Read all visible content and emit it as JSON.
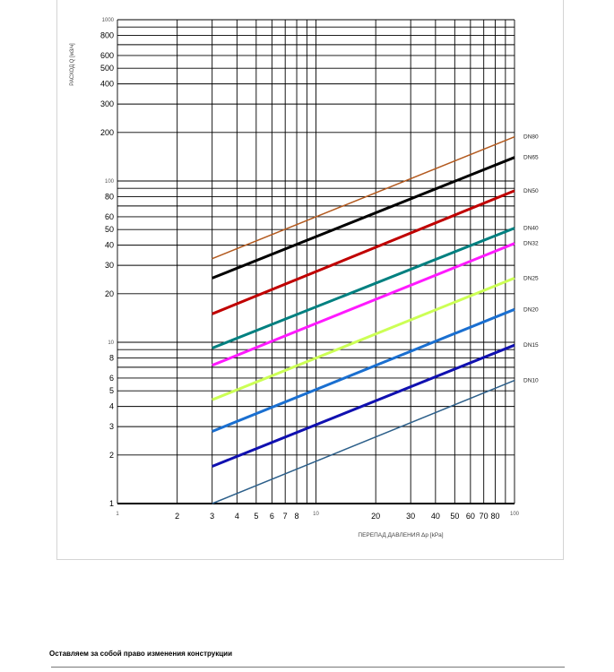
{
  "chart_data": {
    "type": "line",
    "xscale": "log",
    "yscale": "log",
    "xlim": [
      1,
      100
    ],
    "ylim": [
      1,
      1000
    ],
    "grid": true,
    "xlabel": "ПЕРЕПАД ДАВЛЕНИЯ Δp  [kPa]",
    "ylabel": "РАСХОД Q  [м3/ч]",
    "x_ticks": [
      {
        "v": 1,
        "label": "1",
        "minor": true
      },
      {
        "v": 2,
        "label": "2"
      },
      {
        "v": 3,
        "label": "3"
      },
      {
        "v": 4,
        "label": "4"
      },
      {
        "v": 5,
        "label": "5"
      },
      {
        "v": 6,
        "label": "6"
      },
      {
        "v": 7,
        "label": "7"
      },
      {
        "v": 8,
        "label": "8"
      },
      {
        "v": 10,
        "label": "10",
        "minor": true
      },
      {
        "v": 20,
        "label": "20"
      },
      {
        "v": 30,
        "label": "30"
      },
      {
        "v": 40,
        "label": "40"
      },
      {
        "v": 50,
        "label": "50"
      },
      {
        "v": 60,
        "label": "60"
      },
      {
        "v": 70,
        "label": "70"
      },
      {
        "v": 80,
        "label": "80"
      },
      {
        "v": 100,
        "label": "100",
        "minor": true
      }
    ],
    "x_gridlines": [
      1,
      2,
      3,
      4,
      5,
      6,
      7,
      8,
      9,
      10,
      20,
      30,
      40,
      50,
      60,
      70,
      80,
      90,
      100
    ],
    "y_ticks": [
      {
        "v": 1,
        "label": "1"
      },
      {
        "v": 2,
        "label": "2"
      },
      {
        "v": 3,
        "label": "3"
      },
      {
        "v": 4,
        "label": "4"
      },
      {
        "v": 5,
        "label": "5"
      },
      {
        "v": 6,
        "label": "6"
      },
      {
        "v": 8,
        "label": "8"
      },
      {
        "v": 10,
        "label": "10",
        "minor": true
      },
      {
        "v": 20,
        "label": "20"
      },
      {
        "v": 30,
        "label": "30"
      },
      {
        "v": 40,
        "label": "40"
      },
      {
        "v": 50,
        "label": "50"
      },
      {
        "v": 60,
        "label": "60"
      },
      {
        "v": 80,
        "label": "80"
      },
      {
        "v": 100,
        "label": "100",
        "minor": true
      },
      {
        "v": 200,
        "label": "200"
      },
      {
        "v": 300,
        "label": "300"
      },
      {
        "v": 400,
        "label": "400"
      },
      {
        "v": 500,
        "label": "500"
      },
      {
        "v": 600,
        "label": "600"
      },
      {
        "v": 800,
        "label": "800"
      },
      {
        "v": 1000,
        "label": "1000",
        "minor": true
      }
    ],
    "y_gridlines": [
      1,
      2,
      3,
      4,
      5,
      6,
      7,
      8,
      9,
      10,
      20,
      30,
      40,
      50,
      60,
      70,
      80,
      90,
      100,
      200,
      300,
      400,
      500,
      600,
      700,
      800,
      900,
      1000
    ],
    "series": [
      {
        "name": "DN80",
        "color": "#b35a1f",
        "stroke": "thin",
        "x": [
          3,
          100
        ],
        "y": [
          33,
          188
        ]
      },
      {
        "name": "DN65",
        "color": "#000000",
        "stroke": "thick",
        "x": [
          3,
          100
        ],
        "y": [
          25,
          140
        ]
      },
      {
        "name": "DN50",
        "color": "#c00000",
        "stroke": "thick",
        "x": [
          3,
          100
        ],
        "y": [
          15,
          87
        ]
      },
      {
        "name": "DN40",
        "color": "#008080",
        "stroke": "thick",
        "x": [
          3,
          100
        ],
        "y": [
          9.2,
          51
        ]
      },
      {
        "name": "DN32",
        "color": "#ff1aff",
        "stroke": "thick",
        "x": [
          3,
          100
        ],
        "y": [
          7.2,
          41
        ]
      },
      {
        "name": "DN25",
        "color": "#ccff55",
        "stroke": "thick",
        "x": [
          3,
          100
        ],
        "y": [
          4.4,
          25
        ]
      },
      {
        "name": "DN20",
        "color": "#1a6fd0",
        "stroke": "thick",
        "x": [
          3,
          100
        ],
        "y": [
          2.8,
          16
        ]
      },
      {
        "name": "DN15",
        "color": "#1010b0",
        "stroke": "thick",
        "x": [
          3,
          100
        ],
        "y": [
          1.7,
          9.6
        ]
      },
      {
        "name": "DN10",
        "color": "#2c5f8a",
        "stroke": "thin",
        "x": [
          3,
          100
        ],
        "y": [
          1.0,
          5.8
        ]
      }
    ]
  },
  "footer": {
    "note": "Оставляем за собой право изменения конструкции"
  }
}
